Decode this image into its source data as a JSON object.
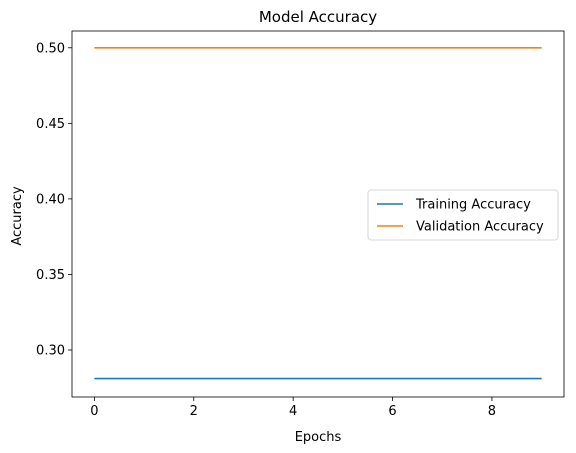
{
  "chart_data": {
    "type": "line",
    "title": "Model Accuracy",
    "xlabel": "Epochs",
    "ylabel": "Accuracy",
    "x": [
      0,
      1,
      2,
      3,
      4,
      5,
      6,
      7,
      8,
      9
    ],
    "xlim": [
      -0.45,
      9.45
    ],
    "ylim": [
      0.2689,
      0.5111
    ],
    "xticks": [
      0,
      2,
      4,
      6,
      8
    ],
    "xtick_labels": [
      "0",
      "2",
      "4",
      "6",
      "8"
    ],
    "yticks": [
      0.3,
      0.35,
      0.4,
      0.45,
      0.5
    ],
    "ytick_labels": [
      "0.30",
      "0.35",
      "0.40",
      "0.45",
      "0.50"
    ],
    "grid": false,
    "legend_position": "center-right",
    "series": [
      {
        "name": "Training Accuracy",
        "color": "#1f77b4",
        "values": [
          0.2811,
          0.2811,
          0.2811,
          0.2811,
          0.2811,
          0.2811,
          0.2811,
          0.2811,
          0.2811,
          0.2811
        ]
      },
      {
        "name": "Validation Accuracy",
        "color": "#ff7f0e",
        "values": [
          0.5,
          0.5,
          0.5,
          0.5,
          0.5,
          0.5,
          0.5,
          0.5,
          0.5,
          0.5
        ]
      }
    ]
  }
}
